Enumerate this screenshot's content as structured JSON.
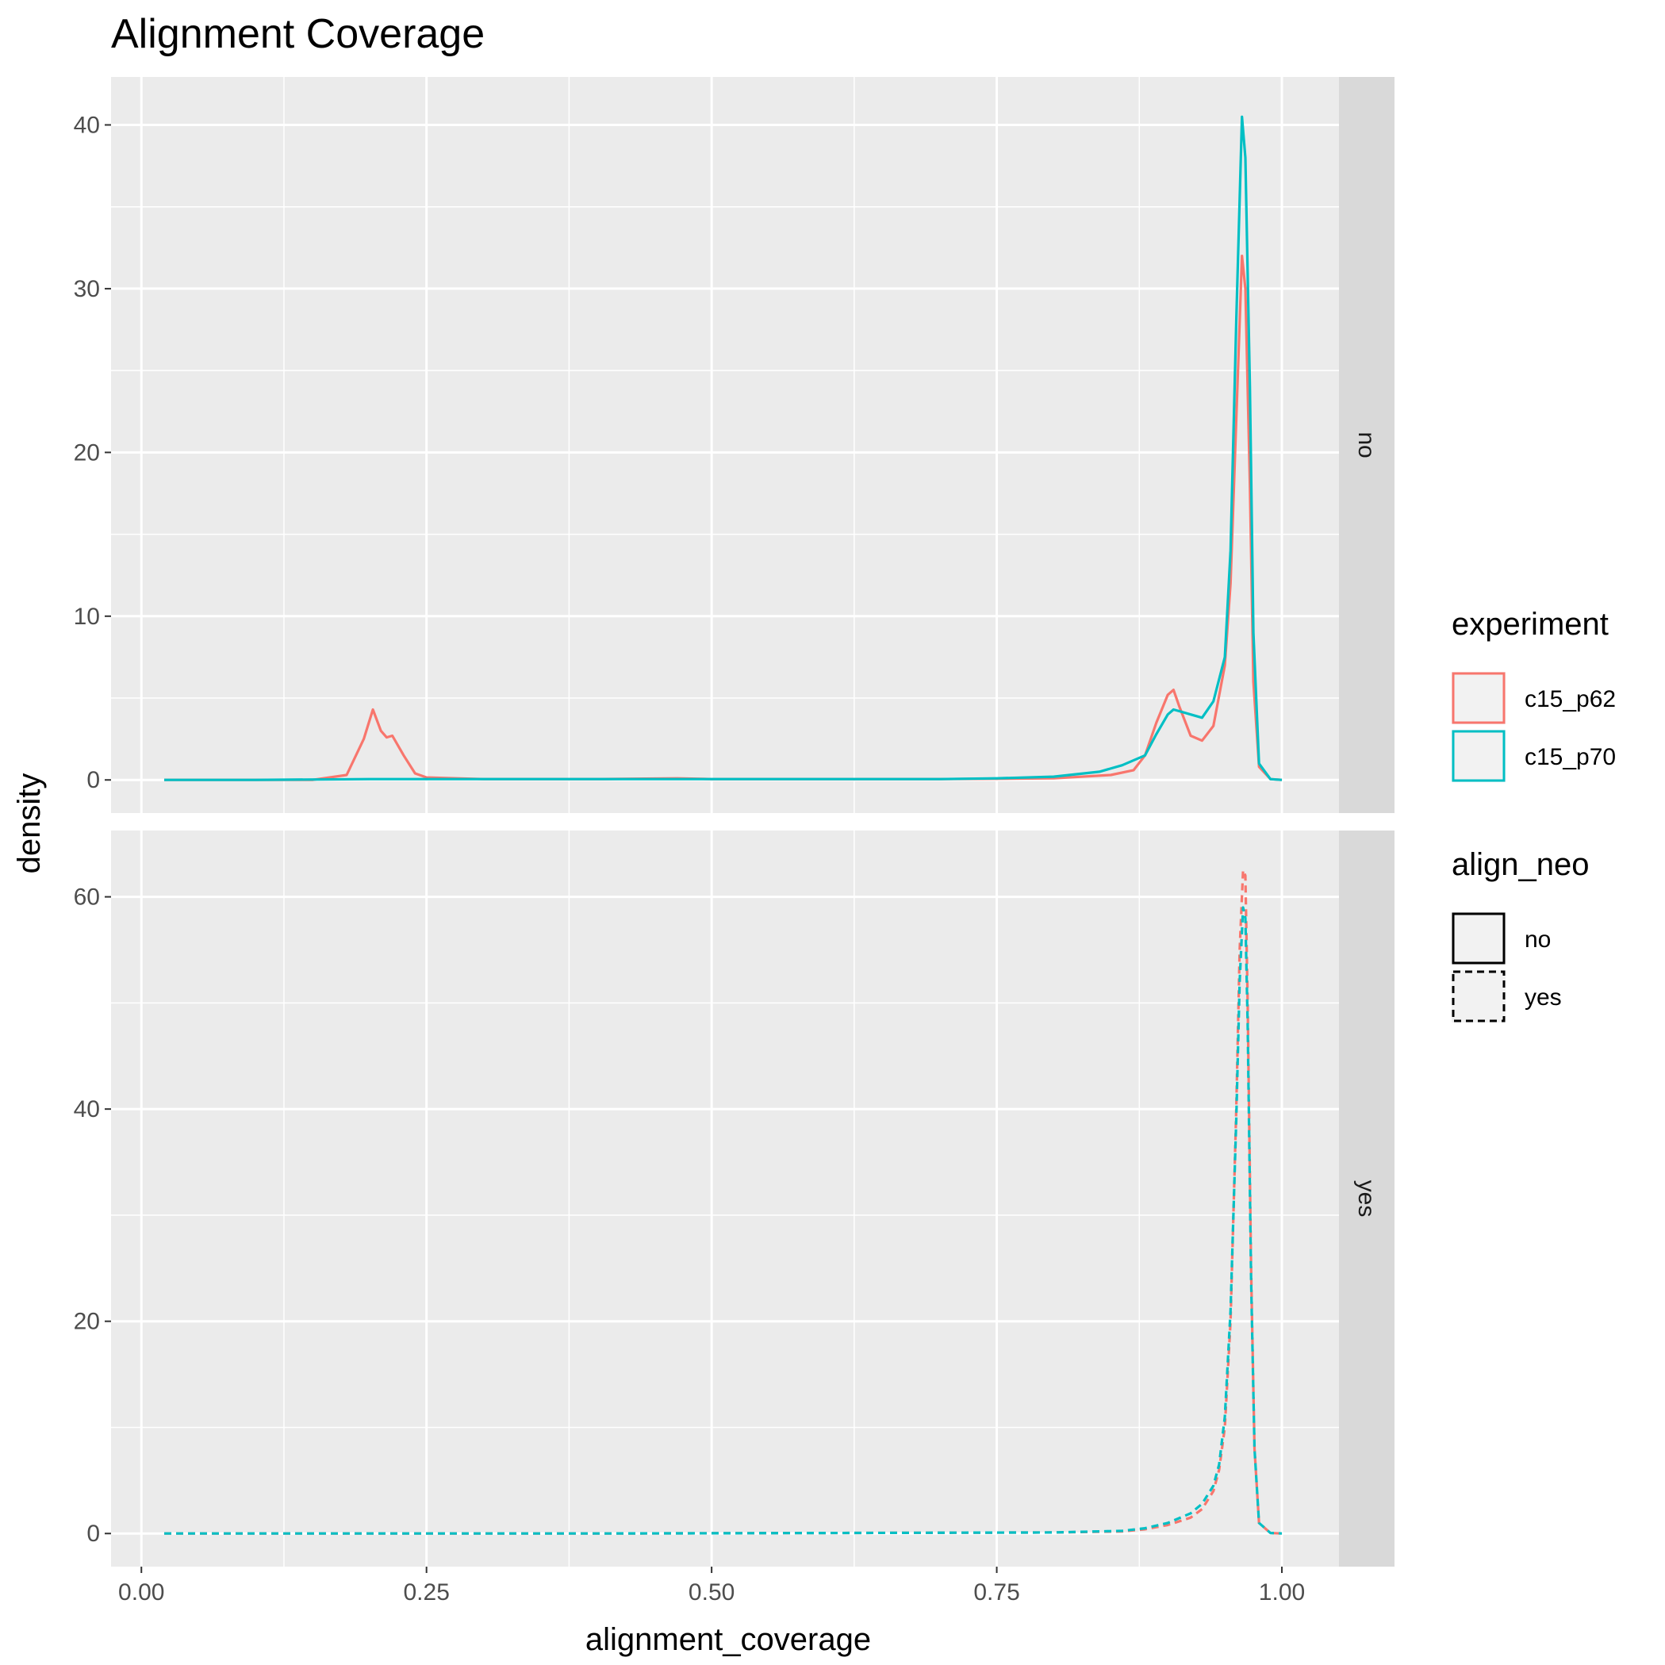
{
  "chart_data": {
    "type": "line",
    "title": "Alignment Coverage",
    "xlabel": "alignment_coverage",
    "ylabel": "density",
    "xlim": [
      0.0,
      1.0
    ],
    "x_ticks": [
      "0.00",
      "0.25",
      "0.50",
      "0.75",
      "1.00"
    ],
    "grid": true,
    "facet_variable": "align_neo",
    "panels": [
      {
        "strip": "no",
        "linetype": "solid",
        "ylim": [
          0,
          40
        ],
        "y_ticks": [
          "0",
          "10",
          "20",
          "30",
          "40"
        ],
        "series": [
          {
            "name": "c15_p62",
            "color": "#F8766D",
            "x": [
              0.02,
              0.08,
              0.15,
              0.18,
              0.195,
              0.203,
              0.21,
              0.215,
              0.22,
              0.23,
              0.24,
              0.25,
              0.3,
              0.4,
              0.47,
              0.5,
              0.6,
              0.7,
              0.8,
              0.85,
              0.87,
              0.88,
              0.89,
              0.9,
              0.905,
              0.91,
              0.92,
              0.93,
              0.94,
              0.95,
              0.955,
              0.96,
              0.965,
              0.968,
              0.972,
              0.975,
              0.98,
              0.99,
              1.0
            ],
            "y": [
              0,
              0,
              0,
              0.3,
              2.5,
              4.3,
              3.0,
              2.6,
              2.7,
              1.5,
              0.4,
              0.15,
              0.05,
              0.05,
              0.1,
              0.05,
              0.05,
              0.05,
              0.1,
              0.3,
              0.6,
              1.5,
              3.5,
              5.2,
              5.5,
              4.5,
              2.7,
              2.4,
              3.3,
              7.0,
              12.0,
              22.0,
              32.0,
              30.0,
              18.0,
              6.0,
              0.8,
              0.05,
              0
            ]
          },
          {
            "name": "c15_p70",
            "color": "#00BFC4",
            "x": [
              0.02,
              0.1,
              0.2,
              0.3,
              0.4,
              0.5,
              0.6,
              0.7,
              0.75,
              0.8,
              0.84,
              0.86,
              0.88,
              0.89,
              0.9,
              0.905,
              0.91,
              0.92,
              0.93,
              0.94,
              0.95,
              0.955,
              0.96,
              0.965,
              0.968,
              0.972,
              0.975,
              0.98,
              0.99,
              1.0
            ],
            "y": [
              0,
              0,
              0.05,
              0.05,
              0.05,
              0.05,
              0.05,
              0.05,
              0.1,
              0.2,
              0.5,
              0.9,
              1.5,
              2.8,
              4.0,
              4.3,
              4.2,
              4.0,
              3.8,
              4.8,
              7.5,
              14.0,
              28.0,
              40.5,
              38.0,
              24.0,
              9.0,
              1.0,
              0.05,
              0
            ]
          }
        ]
      },
      {
        "strip": "yes",
        "linetype": "dashed",
        "ylim": [
          0,
          60
        ],
        "y_ticks": [
          "0",
          "20",
          "40",
          "60"
        ],
        "series": [
          {
            "name": "c15_p62",
            "color": "#F8766D",
            "x": [
              0.02,
              0.2,
              0.4,
              0.6,
              0.8,
              0.86,
              0.88,
              0.9,
              0.92,
              0.93,
              0.94,
              0.945,
              0.95,
              0.955,
              0.96,
              0.963,
              0.966,
              0.968,
              0.97,
              0.973,
              0.976,
              0.98,
              0.99,
              1.0
            ],
            "y": [
              0,
              0,
              0,
              0.05,
              0.1,
              0.2,
              0.4,
              0.8,
              1.5,
              2.3,
              4.0,
              6.0,
              10.0,
              20.0,
              40.0,
              55.0,
              62.5,
              62.0,
              50.0,
              25.0,
              8.0,
              1.0,
              0.05,
              0
            ]
          },
          {
            "name": "c15_p70",
            "color": "#00BFC4",
            "x": [
              0.02,
              0.2,
              0.4,
              0.6,
              0.8,
              0.86,
              0.88,
              0.9,
              0.92,
              0.93,
              0.94,
              0.945,
              0.95,
              0.955,
              0.96,
              0.963,
              0.966,
              0.968,
              0.97,
              0.973,
              0.976,
              0.98,
              0.99,
              1.0
            ],
            "y": [
              0,
              0,
              0,
              0.05,
              0.1,
              0.25,
              0.5,
              1.0,
              1.9,
              2.8,
              4.5,
              6.5,
              11.0,
              21.0,
              39.0,
              52.0,
              59.0,
              58.0,
              48.0,
              24.0,
              8.0,
              1.0,
              0.05,
              0
            ]
          }
        ]
      }
    ],
    "legends": [
      {
        "title": "experiment",
        "items": [
          {
            "label": "c15_p62",
            "color": "#F8766D"
          },
          {
            "label": "c15_p70",
            "color": "#00BFC4"
          }
        ]
      },
      {
        "title": "align_neo",
        "items": [
          {
            "label": "no",
            "linetype": "solid"
          },
          {
            "label": "yes",
            "linetype": "dashed"
          }
        ]
      }
    ],
    "legend_position": "right",
    "colors": {
      "panel_bg": "#EBEBEB",
      "strip_bg": "#D9D9D9",
      "grid": "#FFFFFF"
    }
  }
}
